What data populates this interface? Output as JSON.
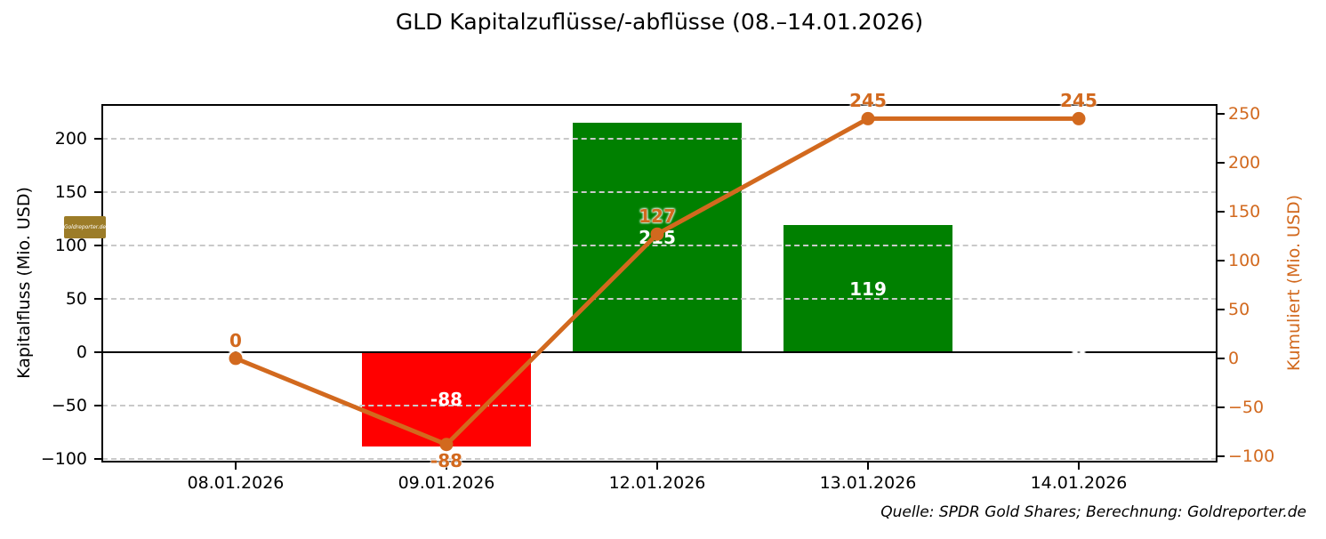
{
  "title": "GLD Kapitalzuflüsse/-abflüsse (08.–14.01.2026)",
  "source_note": "Quelle: SPDR Gold Shares; Berechnung: Goldreporter.de",
  "watermark": "Goldreporter.de",
  "colors": {
    "bar_positive": "#008000",
    "bar_negative": "#ff0000",
    "line": "#d2691e",
    "grid": "#c9c9c9",
    "axis": "#000000",
    "logo_background": "#9c7c28"
  },
  "chart_data": {
    "type": "bar",
    "subtype": "bar+line combo, dual y-axes",
    "title": "GLD Kapitalzuflüsse/-abflüsse (08.–14.01.2026)",
    "categories": [
      "08.01.2026",
      "09.01.2026",
      "12.01.2026",
      "13.01.2026",
      "14.01.2026"
    ],
    "series": [
      {
        "name": "Kapitalfluss",
        "type": "bar",
        "axis": "left",
        "values": [
          0,
          -88,
          215,
          119,
          0
        ],
        "labels": [
          "0",
          "-88",
          "215",
          "119",
          "0"
        ]
      },
      {
        "name": "Kumuliert",
        "type": "line",
        "axis": "right",
        "values": [
          0,
          -88,
          127,
          245,
          245
        ],
        "labels": [
          "0",
          "-88",
          "127",
          "245",
          "245"
        ]
      }
    ],
    "axes": {
      "left": {
        "label": "Kapitalfluss (Mio. USD)",
        "ticks": [
          200,
          150,
          100,
          50,
          0,
          -50,
          -100
        ],
        "tick_labels": [
          "200",
          "150",
          "100",
          "50",
          "0",
          "−50",
          "−100"
        ],
        "min": -102.5,
        "max": 231.7
      },
      "right": {
        "label": "Kumuliert (Mio. USD)",
        "ticks": [
          250,
          200,
          150,
          100,
          50,
          0,
          -50,
          -100
        ],
        "tick_labels": [
          "250",
          "200",
          "150",
          "100",
          "50",
          "0",
          "−50",
          "−100"
        ],
        "min": -105.5,
        "max": 259
      }
    },
    "grid": "horizontal dashed at left-axis ticks",
    "legend": "none"
  }
}
